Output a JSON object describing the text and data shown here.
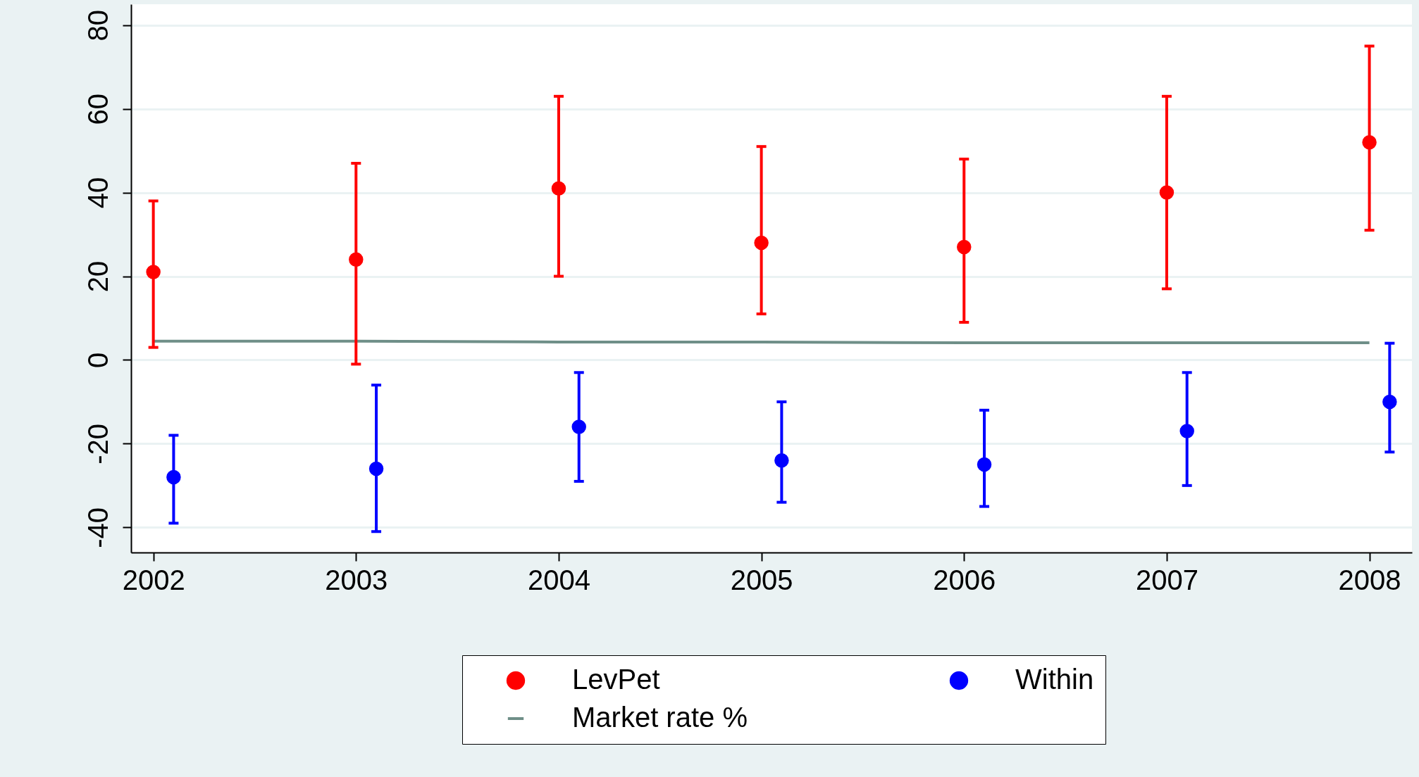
{
  "chart_data": {
    "type": "scatter",
    "xlim": [
      2001.89,
      2008.21
    ],
    "xticks": [
      2002,
      2003,
      2004,
      2005,
      2006,
      2007,
      2008
    ],
    "ylim": [
      -46,
      85
    ],
    "yticks": [
      -40,
      -20,
      0,
      20,
      40,
      60,
      80
    ],
    "grid": "y",
    "legend": "bottom",
    "series": [
      {
        "name": "LevPet",
        "color": "#ff0000",
        "type": "scatter",
        "marker": "circle",
        "x": [
          2002,
          2003,
          2004,
          2005,
          2006,
          2007,
          2008
        ],
        "values": [
          21,
          24,
          41,
          28,
          27,
          40,
          52
        ],
        "errors": [
          [
            3,
            38
          ],
          [
            -1,
            47
          ],
          [
            20,
            63
          ],
          [
            11,
            51
          ],
          [
            9,
            48
          ],
          [
            17,
            63
          ],
          [
            31,
            75
          ]
        ]
      },
      {
        "name": "Within",
        "color": "#0000ff",
        "type": "scatter",
        "marker": "circle",
        "x": [
          2002.1,
          2003.1,
          2004.1,
          2005.1,
          2006.1,
          2007.1,
          2008.1
        ],
        "values": [
          -28,
          -26,
          -16,
          -24,
          -25,
          -17,
          -10
        ],
        "errors": [
          [
            -39,
            -18
          ],
          [
            -41,
            -6
          ],
          [
            -29,
            -3
          ],
          [
            -34,
            -10
          ],
          [
            -35,
            -12
          ],
          [
            -30,
            -3
          ],
          [
            -22,
            4
          ]
        ]
      },
      {
        "name": "Market rate %",
        "color": "#6f8f88",
        "type": "line",
        "marker": "none",
        "x": [
          2002,
          2003,
          2004,
          2005,
          2006,
          2007,
          2008
        ],
        "values": [
          4.5,
          4.5,
          4.3,
          4.3,
          4.1,
          4.1,
          4.1
        ]
      }
    ]
  }
}
